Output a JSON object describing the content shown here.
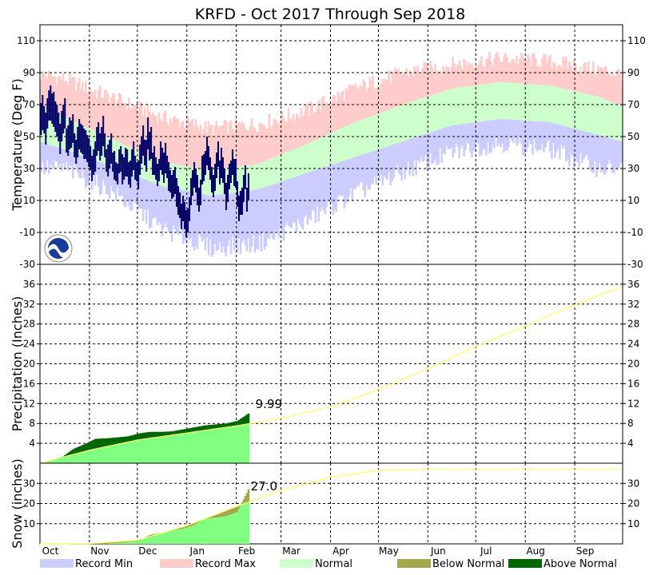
{
  "chart_data": {
    "title": "KRFD - Oct 2017 Through Sep 2018",
    "months": [
      "Oct",
      "Nov",
      "Dec",
      "Jan",
      "Feb",
      "Mar",
      "Apr",
      "May",
      "Jun",
      "Jul",
      "Aug",
      "Sep"
    ],
    "month_lengths": [
      31,
      30,
      31,
      31,
      28,
      31,
      30,
      31,
      30,
      31,
      31,
      30
    ],
    "last_observed_day_index": 130,
    "temperature": {
      "type": "area+bar",
      "ylabel": "Temperature (Deg F)",
      "ylim": [
        -30,
        120
      ],
      "ticks": [
        -30,
        -10,
        10,
        30,
        50,
        70,
        90,
        110
      ],
      "record_max_monthly": [
        86,
        74,
        62,
        55,
        58,
        66,
        80,
        90,
        95,
        99,
        97,
        92
      ],
      "record_min_monthly": [
        30,
        15,
        -8,
        -20,
        -17,
        -3,
        14,
        28,
        40,
        46,
        42,
        30
      ],
      "normal_high_monthly": [
        62,
        48,
        34,
        29,
        33,
        45,
        59,
        70,
        80,
        84,
        82,
        75
      ],
      "normal_low_monthly": [
        42,
        31,
        19,
        13,
        17,
        27,
        37,
        47,
        57,
        61,
        59,
        51
      ],
      "observed_daily_high_to_feb10": [
        71,
        76,
        69,
        65,
        74,
        79,
        82,
        77,
        78,
        72,
        70,
        65,
        58,
        66,
        70,
        74,
        55,
        57,
        62,
        60,
        64,
        52,
        48,
        56,
        61,
        58,
        57,
        55,
        54,
        51,
        49,
        44,
        38,
        42,
        47,
        56,
        59,
        52,
        56,
        63,
        52,
        42,
        45,
        48,
        52,
        40,
        41,
        34,
        33,
        42,
        44,
        39,
        37,
        43,
        42,
        34,
        35,
        42,
        47,
        38,
        34,
        35,
        45,
        50,
        57,
        48,
        48,
        62,
        53,
        56,
        40,
        44,
        37,
        33,
        36,
        47,
        43,
        40,
        46,
        38,
        34,
        29,
        26,
        29,
        31,
        24,
        19,
        15,
        8,
        13,
        9,
        4,
        5,
        12,
        24,
        29,
        34,
        30,
        26,
        18,
        23,
        38,
        39,
        41,
        50,
        44,
        37,
        31,
        26,
        33,
        40,
        47,
        35,
        43,
        37,
        30,
        21,
        26,
        33,
        35,
        42,
        36,
        36,
        22,
        13,
        16,
        18,
        26,
        32,
        18,
        27
      ],
      "observed_daily_low_to_feb10": [
        51,
        54,
        52,
        45,
        55,
        60,
        60,
        58,
        56,
        53,
        50,
        47,
        39,
        47,
        52,
        55,
        40,
        38,
        42,
        43,
        46,
        37,
        33,
        37,
        42,
        40,
        39,
        36,
        36,
        34,
        31,
        29,
        22,
        26,
        28,
        38,
        41,
        35,
        38,
        44,
        37,
        28,
        25,
        30,
        33,
        28,
        23,
        22,
        20,
        27,
        28,
        20,
        23,
        25,
        25,
        20,
        18,
        25,
        29,
        23,
        22,
        17,
        26,
        33,
        38,
        32,
        28,
        42,
        35,
        36,
        26,
        26,
        23,
        19,
        22,
        29,
        26,
        21,
        27,
        24,
        16,
        15,
        11,
        12,
        14,
        6,
        1,
        -1,
        -8,
        -3,
        -8,
        -13,
        -10,
        -3,
        7,
        13,
        18,
        15,
        7,
        3,
        7,
        20,
        22,
        26,
        32,
        29,
        23,
        15,
        12,
        16,
        24,
        31,
        20,
        24,
        21,
        14,
        4,
        9,
        17,
        21,
        26,
        19,
        18,
        6,
        -3,
        1,
        1,
        9,
        17,
        3,
        10
      ],
      "colors": {
        "record_max": "#ffcccc",
        "normal": "#ccffcc",
        "record_min": "#ccccff",
        "observed": "#000066"
      }
    },
    "precipitation": {
      "type": "line+area",
      "ylabel": "Precipitation (Inches)",
      "ylim": [
        0,
        40
      ],
      "ticks": [
        4,
        8,
        12,
        16,
        20,
        24,
        28,
        32,
        36
      ],
      "normal_cumulative_month_end": [
        2.62,
        4.66,
        6.08,
        7.52,
        9.03,
        11.33,
        14.79,
        18.99,
        23.48,
        27.58,
        31.88,
        35.62
      ],
      "observed_cumulative_weekly_to_feb10": [
        0.0,
        0.5,
        1.3,
        2.9,
        3.8,
        4.9,
        5.0,
        5.2,
        5.4,
        6.0,
        6.3,
        6.3,
        6.4,
        6.8,
        7.2,
        7.6,
        7.8,
        8.0,
        8.5,
        9.99
      ],
      "label": "9.99",
      "colors": {
        "normal": "#ffff66",
        "observed": "#80ff80",
        "above": "#006600",
        "below": "#a6a64d"
      }
    },
    "snow": {
      "type": "line+area",
      "ylabel": "Snow (inches)",
      "ylim": [
        0,
        40
      ],
      "ticks": [
        10,
        20,
        30
      ],
      "normal_cumulative_month_end": [
        0.1,
        1.8,
        9.0,
        18.5,
        26.5,
        33.0,
        36.5,
        36.9,
        36.9,
        36.9,
        36.9,
        36.9
      ],
      "observed_cumulative_weekly_to_feb10": [
        0,
        0,
        0,
        0,
        0,
        0,
        0.1,
        0.5,
        0.9,
        1.5,
        4.5,
        5.5,
        6.5,
        7.5,
        9.2,
        12.5,
        13.0,
        13.8,
        15.8,
        27.0
      ],
      "label": "27.0",
      "colors": {
        "normal": "#ffff66",
        "observed": "#80ff80",
        "below": "#a6a64d"
      }
    },
    "legend": [
      {
        "label": "Record Min",
        "color": "#ccccff"
      },
      {
        "label": "Record Max",
        "color": "#ffcccc"
      },
      {
        "label": "Normal",
        "color": "#ccffcc"
      },
      {
        "label": "Below Normal",
        "color": "#a6a64d"
      },
      {
        "label": "Above Normal",
        "color": "#006600"
      }
    ]
  }
}
